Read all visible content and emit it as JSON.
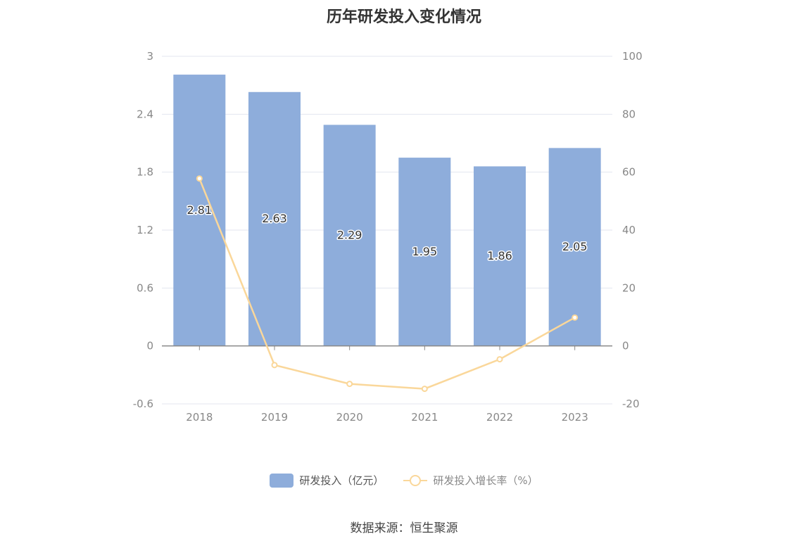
{
  "title": "历年研发投入变化情况",
  "source": "数据来源：恒生聚源",
  "colors": {
    "bar": "#8eaddb",
    "line": "#fad79a",
    "grid": "#e3e6ef",
    "axis": "#888888",
    "text": "#888888"
  },
  "legend": {
    "bar_label": "研发投入（亿元）",
    "line_label": "研发投入增长率（%）"
  },
  "chart_data": {
    "type": "bar",
    "categories": [
      "2018",
      "2019",
      "2020",
      "2021",
      "2022",
      "2023"
    ],
    "series": [
      {
        "name": "研发投入（亿元）",
        "type": "bar",
        "axis": "left",
        "values": [
          2.81,
          2.63,
          2.29,
          1.95,
          1.86,
          2.05
        ],
        "labels": [
          "2.81",
          "2.63",
          "2.29",
          "1.95",
          "1.86",
          "2.05"
        ]
      },
      {
        "name": "研发投入增长率（%）",
        "type": "line",
        "axis": "right",
        "values": [
          57.8,
          -6.6,
          -13.1,
          -14.8,
          -4.6,
          9.8
        ]
      }
    ],
    "y_left": {
      "ylim": [
        -0.6,
        3
      ],
      "ticks": [
        "-0.6",
        "0",
        "0.6",
        "1.2",
        "1.8",
        "2.4",
        "3"
      ]
    },
    "y_right": {
      "ylim": [
        -20,
        100
      ],
      "ticks": [
        "-20",
        "0",
        "20",
        "40",
        "60",
        "80",
        "100"
      ]
    },
    "grid": true,
    "legend_position": "bottom"
  }
}
